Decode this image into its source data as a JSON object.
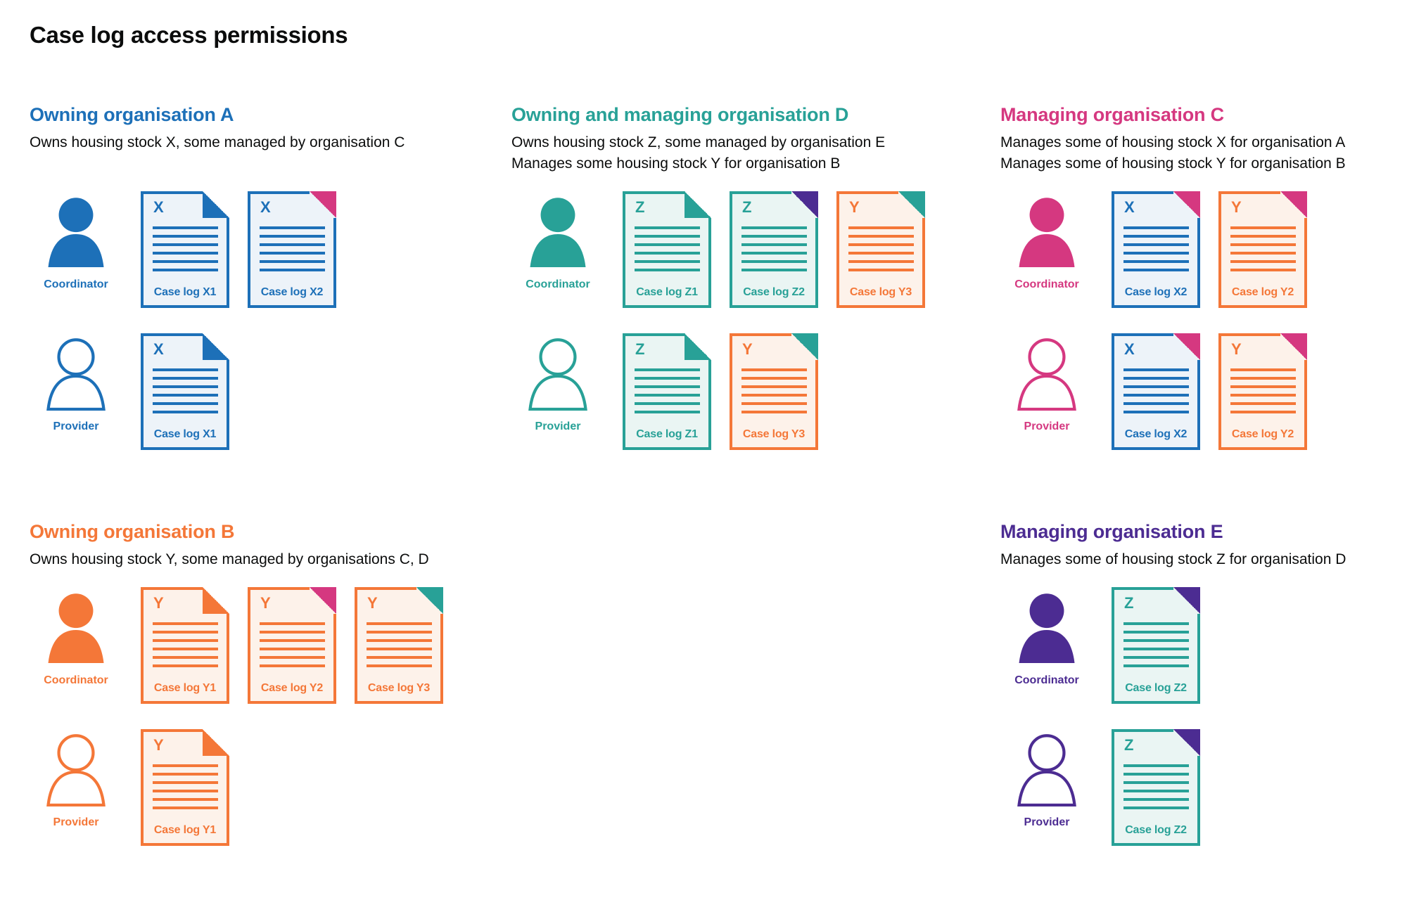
{
  "title": "Case log access permissions",
  "colors": {
    "blue": "#1d70b8",
    "teal": "#28a197",
    "pink": "#d53880",
    "orange": "#f47738",
    "purple": "#4c2c92",
    "text": "#0b0c0c"
  },
  "doc_fills": {
    "blue": "#edf3f9",
    "teal": "#eaf5f3",
    "orange": "#fdf2ea"
  },
  "organisations": [
    {
      "id": "org-a",
      "name": "Owning organisation A",
      "color": "blue",
      "description_lines": [
        "Owns housing stock X, some managed by organisation C"
      ],
      "rows": [
        {
          "role": "Coordinator",
          "docs": [
            {
              "letter": "X",
              "label": "Case log X1",
              "doc_color": "blue",
              "ear_color": "blue"
            },
            {
              "letter": "X",
              "label": "Case log X2",
              "doc_color": "blue",
              "ear_color": "pink"
            }
          ]
        },
        {
          "role": "Provider",
          "docs": [
            {
              "letter": "X",
              "label": "Case log X1",
              "doc_color": "blue",
              "ear_color": "blue"
            }
          ]
        }
      ]
    },
    {
      "id": "org-d",
      "name": "Owning and managing organisation D",
      "color": "teal",
      "description_lines": [
        "Owns housing stock Z, some managed by organisation E",
        "Manages some housing stock Y for organisation B"
      ],
      "rows": [
        {
          "role": "Coordinator",
          "docs": [
            {
              "letter": "Z",
              "label": "Case log Z1",
              "doc_color": "teal",
              "ear_color": "teal"
            },
            {
              "letter": "Z",
              "label": "Case log Z2",
              "doc_color": "teal",
              "ear_color": "purple"
            },
            {
              "letter": "Y",
              "label": "Case log Y3",
              "doc_color": "orange",
              "ear_color": "teal"
            }
          ]
        },
        {
          "role": "Provider",
          "docs": [
            {
              "letter": "Z",
              "label": "Case log Z1",
              "doc_color": "teal",
              "ear_color": "teal"
            },
            {
              "letter": "Y",
              "label": "Case log Y3",
              "doc_color": "orange",
              "ear_color": "teal"
            }
          ]
        }
      ]
    },
    {
      "id": "org-c",
      "name": "Managing organisation C",
      "color": "pink",
      "description_lines": [
        "Manages some of housing stock X for organisation A",
        "Manages some of housing stock Y for organisation B"
      ],
      "rows": [
        {
          "role": "Coordinator",
          "docs": [
            {
              "letter": "X",
              "label": "Case log X2",
              "doc_color": "blue",
              "ear_color": "pink"
            },
            {
              "letter": "Y",
              "label": "Case log Y2",
              "doc_color": "orange",
              "ear_color": "pink"
            }
          ]
        },
        {
          "role": "Provider",
          "docs": [
            {
              "letter": "X",
              "label": "Case log X2",
              "doc_color": "blue",
              "ear_color": "pink"
            },
            {
              "letter": "Y",
              "label": "Case log Y2",
              "doc_color": "orange",
              "ear_color": "pink"
            }
          ]
        }
      ]
    },
    {
      "id": "org-b",
      "name": "Owning organisation B",
      "color": "orange",
      "description_lines": [
        "Owns housing stock Y, some managed by organisations C, D"
      ],
      "rows": [
        {
          "role": "Coordinator",
          "docs": [
            {
              "letter": "Y",
              "label": "Case log Y1",
              "doc_color": "orange",
              "ear_color": "orange"
            },
            {
              "letter": "Y",
              "label": "Case log Y2",
              "doc_color": "orange",
              "ear_color": "pink"
            },
            {
              "letter": "Y",
              "label": "Case log Y3",
              "doc_color": "orange",
              "ear_color": "teal"
            }
          ]
        },
        {
          "role": "Provider",
          "docs": [
            {
              "letter": "Y",
              "label": "Case log Y1",
              "doc_color": "orange",
              "ear_color": "orange"
            }
          ]
        }
      ]
    },
    {
      "id": "org-e",
      "name": "Managing organisation E",
      "color": "purple",
      "description_lines": [
        "Manages some of housing stock Z for organisation D"
      ],
      "rows": [
        {
          "role": "Coordinator",
          "docs": [
            {
              "letter": "Z",
              "label": "Case log Z2",
              "doc_color": "teal",
              "ear_color": "purple"
            }
          ]
        },
        {
          "role": "Provider",
          "docs": [
            {
              "letter": "Z",
              "label": "Case log Z2",
              "doc_color": "teal",
              "ear_color": "purple"
            }
          ]
        }
      ]
    }
  ]
}
